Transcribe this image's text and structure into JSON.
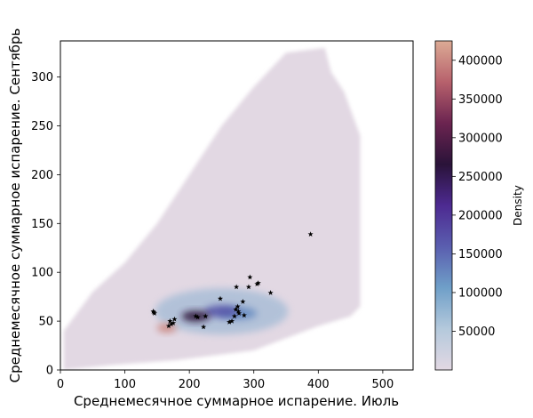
{
  "chart_data": {
    "type": "heatmap",
    "title": "",
    "xlabel": "Среднемесячное суммарное испарение. Июль",
    "ylabel": "Среднемесячное суммарное испарение. Сентябрь",
    "xlim": [
      0,
      547
    ],
    "ylim": [
      0,
      337
    ],
    "xticks": [
      0,
      100,
      200,
      300,
      400,
      500
    ],
    "yticks": [
      0,
      50,
      100,
      150,
      200,
      250,
      300
    ],
    "grid": false,
    "colorbar": {
      "label": "Density",
      "range": [
        0,
        425000
      ],
      "ticks": [
        50000,
        100000,
        150000,
        200000,
        250000,
        300000,
        350000,
        400000
      ],
      "tick_labels": [
        "50000",
        "100000",
        "150000",
        "200000",
        "250000",
        "300000",
        "350000",
        "400000"
      ],
      "colormap": [
        "#e2d8e3",
        "#b4c9dc",
        "#6f9fc8",
        "#5a5eaf",
        "#4d2a91",
        "#2a1339",
        "#6b2450",
        "#b7616c",
        "#dcab95"
      ]
    },
    "density_region_outline": [
      [
        5,
        0
      ],
      [
        80,
        5
      ],
      [
        180,
        10
      ],
      [
        300,
        20
      ],
      [
        400,
        45
      ],
      [
        450,
        55
      ],
      [
        465,
        65
      ],
      [
        465,
        240
      ],
      [
        440,
        285
      ],
      [
        420,
        305
      ],
      [
        410,
        330
      ],
      [
        350,
        325
      ],
      [
        300,
        290
      ],
      [
        250,
        250
      ],
      [
        200,
        200
      ],
      [
        150,
        150
      ],
      [
        100,
        110
      ],
      [
        50,
        80
      ],
      [
        5,
        40
      ]
    ],
    "density_cores": [
      {
        "x": 165,
        "y": 43,
        "density": 400000
      },
      {
        "x": 210,
        "y": 55,
        "density": 270000
      },
      {
        "x": 250,
        "y": 60,
        "density": 170000
      },
      {
        "x": 275,
        "y": 58,
        "density": 120000
      }
    ],
    "star_markers": [
      [
        144,
        60
      ],
      [
        146,
        58
      ],
      [
        145,
        59
      ],
      [
        170,
        50
      ],
      [
        175,
        48
      ],
      [
        177,
        52
      ],
      [
        168,
        45
      ],
      [
        172,
        47
      ],
      [
        210,
        55
      ],
      [
        213,
        54
      ],
      [
        225,
        55
      ],
      [
        222,
        44
      ],
      [
        248,
        73
      ],
      [
        262,
        49
      ],
      [
        266,
        50
      ],
      [
        270,
        55
      ],
      [
        272,
        62
      ],
      [
        275,
        65
      ],
      [
        276,
        60
      ],
      [
        277,
        58
      ],
      [
        283,
        70
      ],
      [
        285,
        56
      ],
      [
        273,
        85
      ],
      [
        292,
        85
      ],
      [
        294,
        95
      ],
      [
        305,
        88
      ],
      [
        307,
        89
      ],
      [
        326,
        79
      ],
      [
        388,
        139
      ]
    ]
  }
}
